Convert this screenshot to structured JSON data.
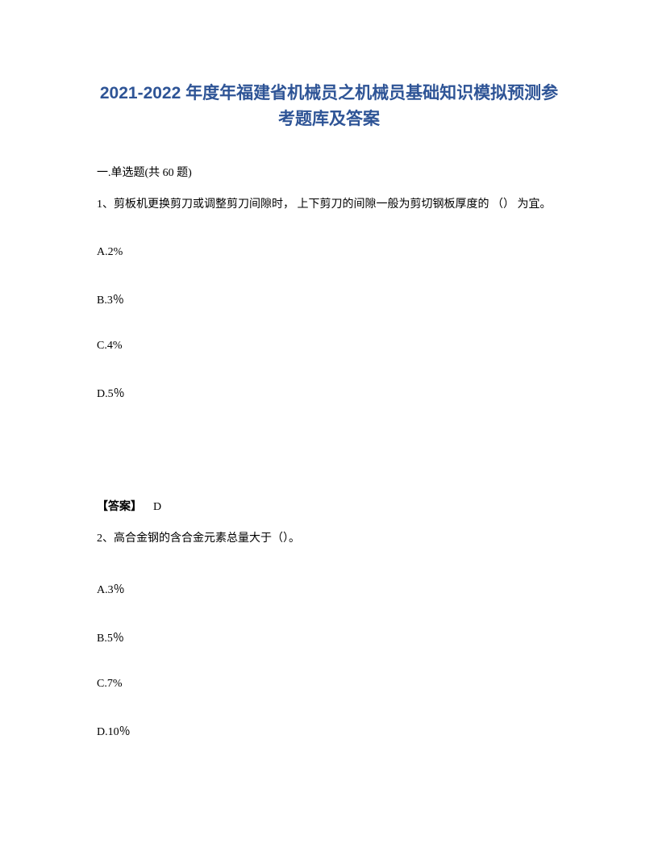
{
  "title": "2021-2022 年度年福建省机械员之机械员基础知识模拟预测参考题库及答案",
  "section_header": "一.单选题(共 60 题)",
  "question1": {
    "text": "1、剪板机更换剪刀或调整剪刀间隙时， 上下剪刀的间隙一般为剪切钢板厚度的 （） 为宜。",
    "options": {
      "a": "A.2%",
      "b": "B.3％",
      "c": "C.4%",
      "d": "D.5％"
    },
    "answer_label": "【答案】",
    "answer_value": "D"
  },
  "question2": {
    "text": "2、高合金钢的含合金元素总量大于（）。",
    "options": {
      "a": "A.3％",
      "b": "B.5％",
      "c": "C.7%",
      "d": "D.10％"
    }
  },
  "colors": {
    "title_color": "#2e5496",
    "text_color": "#000000",
    "background_color": "#ffffff"
  },
  "typography": {
    "title_fontsize": 21,
    "body_fontsize": 14,
    "title_font": "Microsoft YaHei",
    "body_font": "SimSun"
  }
}
